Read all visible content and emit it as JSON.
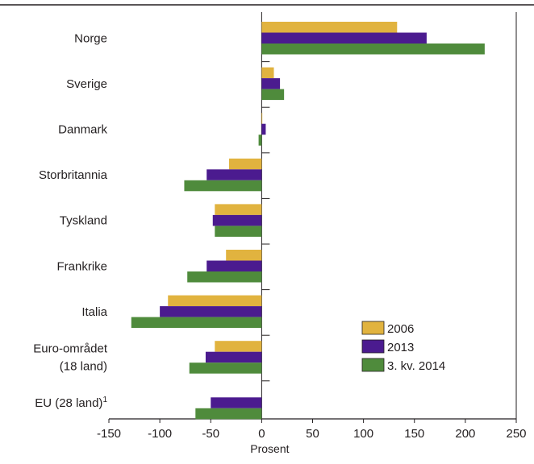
{
  "chart_data": {
    "type": "bar",
    "orientation": "horizontal",
    "categories": [
      "Norge",
      "Sverige",
      "Danmark",
      "Storbritannia",
      "Tyskland",
      "Frankrike",
      "Italia",
      "Euro-området (18 land)",
      "EU (28 land)¹"
    ],
    "category_lines": [
      [
        "Norge"
      ],
      [
        "Sverige"
      ],
      [
        "Danmark"
      ],
      [
        "Storbritannia"
      ],
      [
        "Tyskland"
      ],
      [
        "Frankrike"
      ],
      [
        "Italia"
      ],
      [
        "Euro-området",
        "(18 land)"
      ],
      [
        "EU (28 land)¹"
      ]
    ],
    "series": [
      {
        "name": "2006",
        "color": "#e1b33f",
        "values": [
          133,
          12,
          0,
          -32,
          -46,
          -35,
          -92,
          -46,
          null
        ]
      },
      {
        "name": "2013",
        "color": "#4b1b8f",
        "values": [
          162,
          18,
          4,
          -54,
          -48,
          -54,
          -100,
          -55,
          -50
        ]
      },
      {
        "name": "3. kv. 2014",
        "color": "#4f8b3c",
        "values": [
          219,
          22,
          -3,
          -76,
          -46,
          -73,
          -128,
          -71,
          -65
        ]
      }
    ],
    "xlim": [
      -150,
      250
    ],
    "xticks": [
      "-150",
      "-100",
      "-50",
      "0",
      "50",
      "100",
      "150",
      "200",
      "250"
    ],
    "xlabel": "Prosent",
    "ylabel": "",
    "title": "",
    "grid": false,
    "legend_position": "lower-right"
  }
}
